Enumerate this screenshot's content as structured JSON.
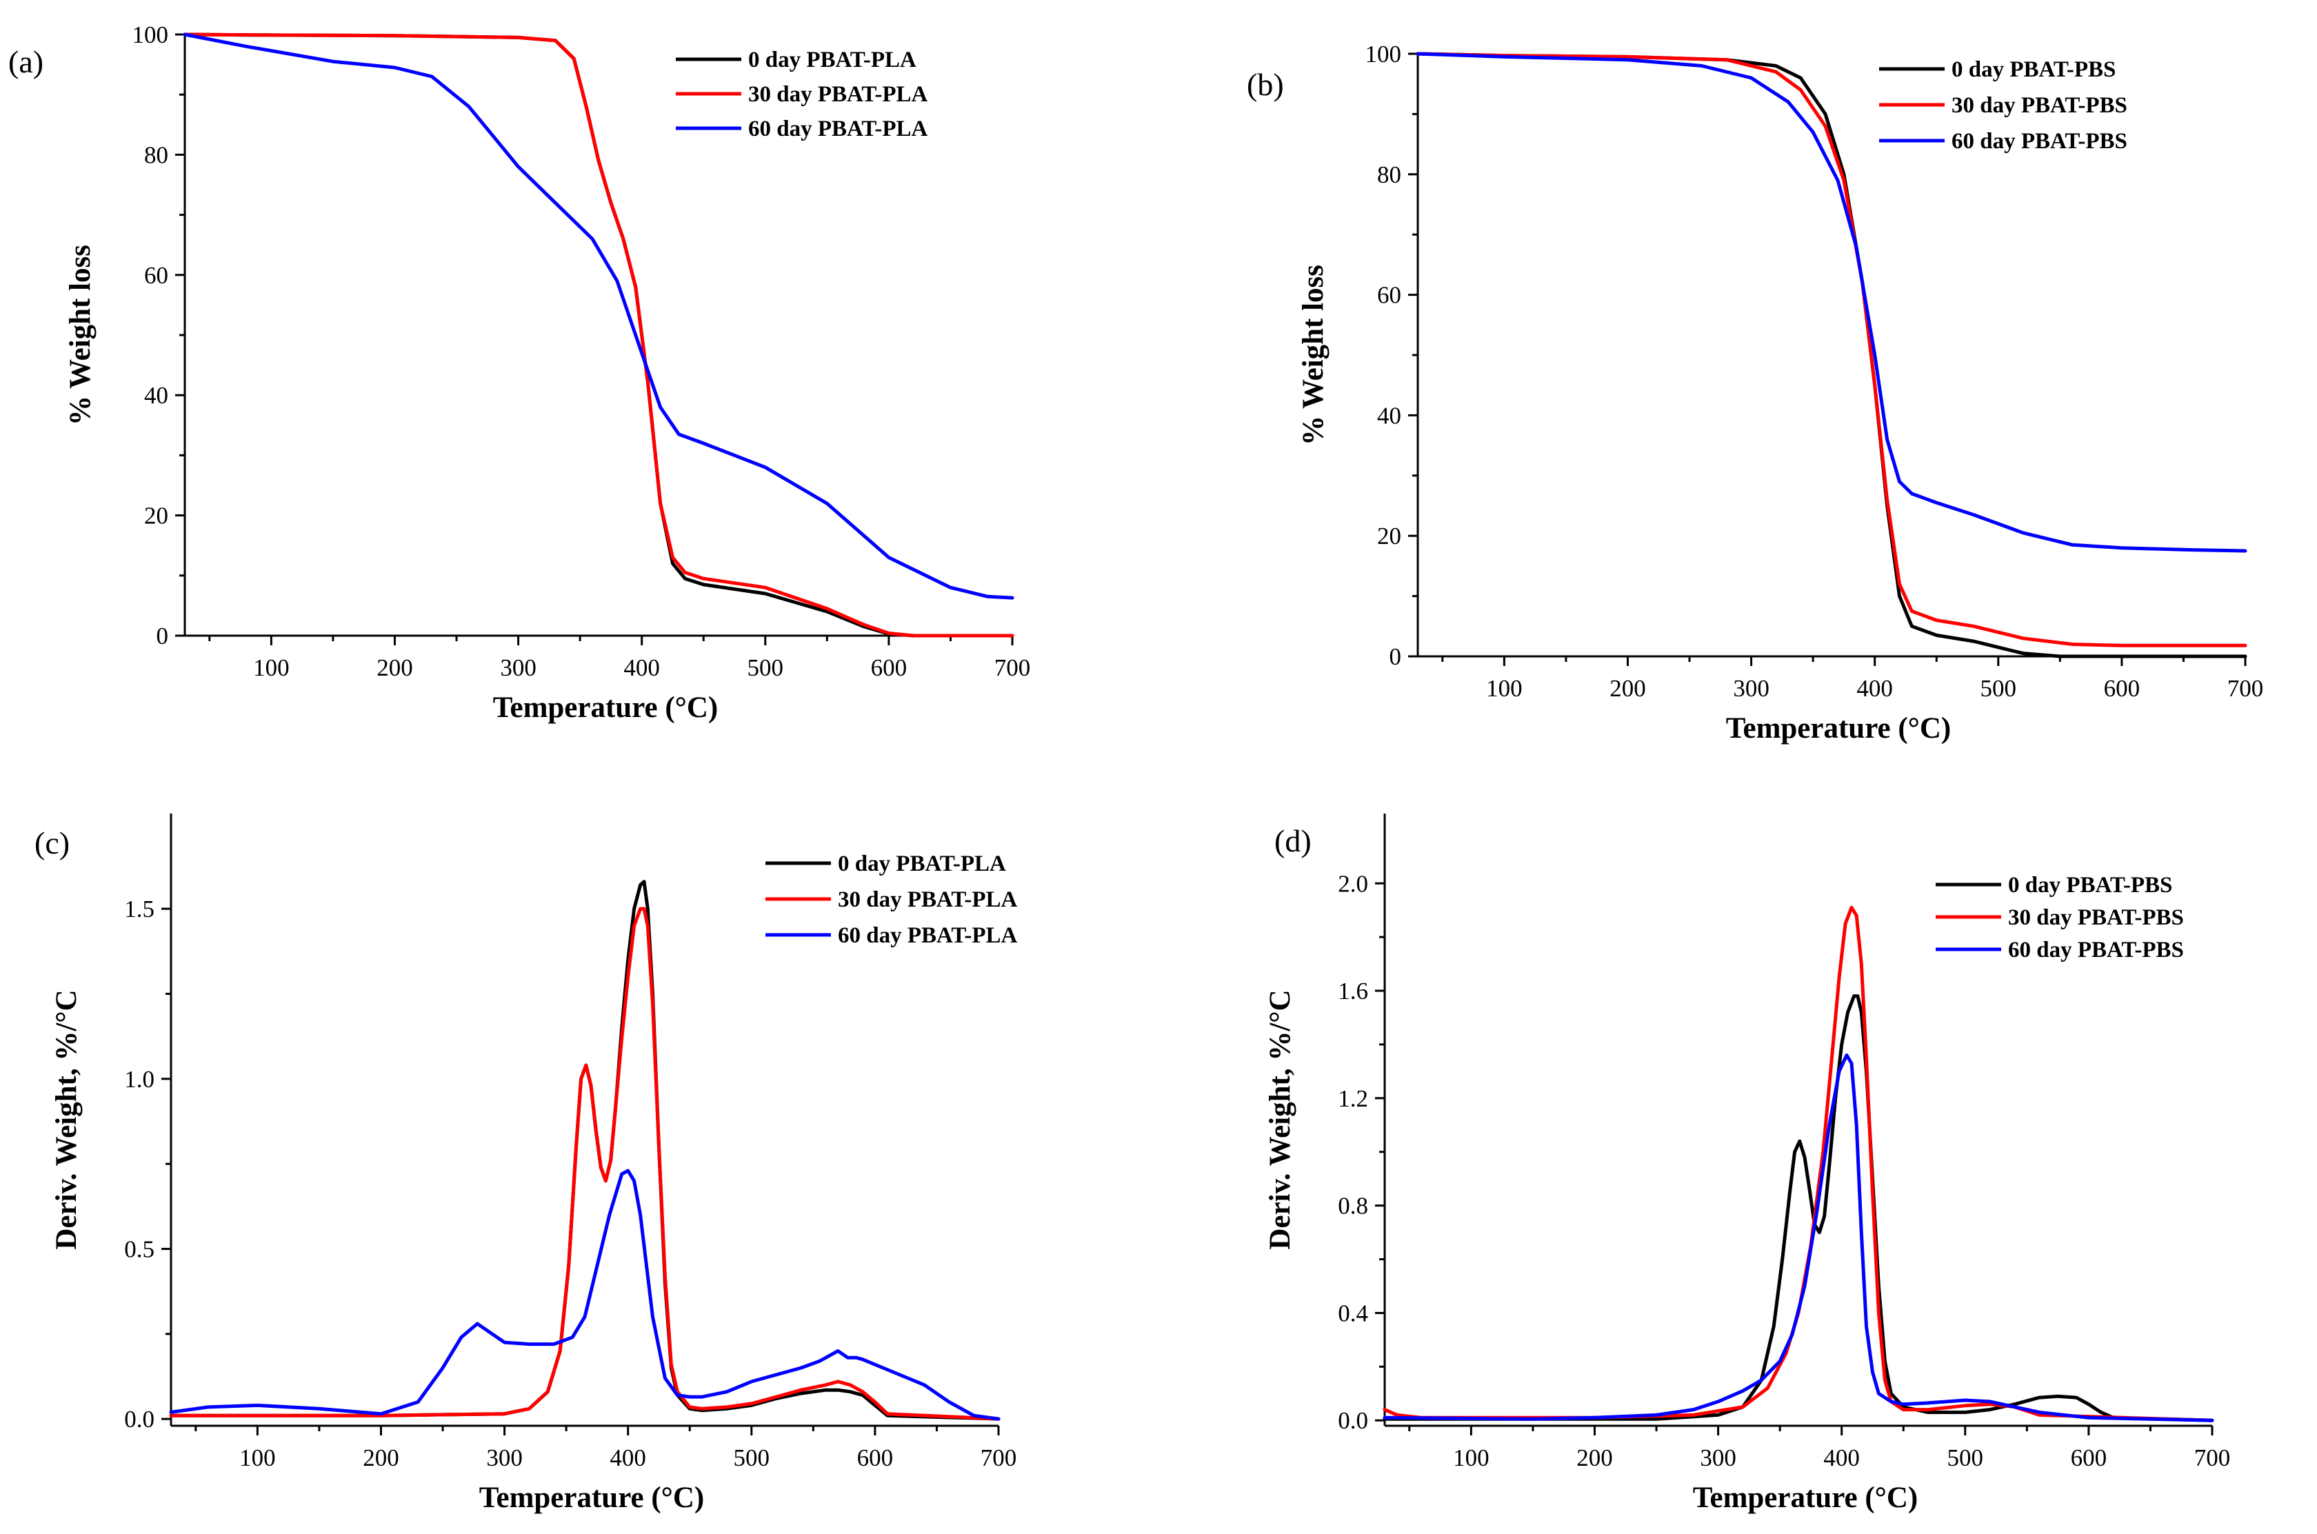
{
  "chart_data": [
    {
      "panel": "(a)",
      "type": "line",
      "xlabel": "Temperature (°C)",
      "ylabel": "% Weight loss",
      "xlim": [
        30,
        700
      ],
      "ylim": [
        0,
        100
      ],
      "xticks": [
        100,
        200,
        300,
        400,
        500,
        600,
        700
      ],
      "yticks": [
        0,
        20,
        40,
        60,
        80,
        100
      ],
      "legend_position": "top-right",
      "series": [
        {
          "name": "0 day PBAT-PLA",
          "color": "#000000",
          "x": [
            30,
            100,
            200,
            300,
            330,
            345,
            355,
            365,
            375,
            385,
            395,
            405,
            415,
            425,
            435,
            450,
            500,
            550,
            580,
            600,
            620,
            700
          ],
          "y": [
            100,
            99.9,
            99.8,
            99.5,
            99,
            96,
            88,
            79,
            72,
            66,
            58,
            42,
            22,
            12,
            9.5,
            8.5,
            7,
            4,
            1.5,
            0.3,
            0,
            0
          ]
        },
        {
          "name": "30 day PBAT-PLA",
          "color": "#ff0000",
          "x": [
            30,
            100,
            200,
            300,
            330,
            345,
            355,
            365,
            375,
            385,
            395,
            405,
            415,
            425,
            435,
            450,
            500,
            550,
            580,
            600,
            620,
            700
          ],
          "y": [
            100,
            99.9,
            99.8,
            99.5,
            99,
            96,
            88,
            79,
            72,
            66,
            58,
            42,
            22,
            13,
            10.5,
            9.5,
            8,
            4.5,
            1.8,
            0.4,
            0,
            0
          ]
        },
        {
          "name": "60 day PBAT-PLA",
          "color": "#0000ff",
          "x": [
            30,
            80,
            150,
            200,
            230,
            260,
            280,
            300,
            330,
            360,
            380,
            400,
            415,
            430,
            450,
            500,
            550,
            600,
            650,
            680,
            700
          ],
          "y": [
            100,
            98,
            95.5,
            94.5,
            93,
            88,
            83,
            78,
            72,
            66,
            59,
            47,
            38,
            33.5,
            32,
            28,
            22,
            13,
            8,
            6.5,
            6.3
          ]
        }
      ]
    },
    {
      "panel": "(b)",
      "type": "line",
      "xlabel": "Temperature (°C)",
      "ylabel": "% Weight loss",
      "xlim": [
        30,
        700
      ],
      "ylim": [
        0,
        100
      ],
      "xticks": [
        100,
        200,
        300,
        400,
        500,
        600,
        700
      ],
      "yticks": [
        0,
        20,
        40,
        60,
        80,
        100
      ],
      "legend_position": "top-right",
      "series": [
        {
          "name": "0 day PBAT-PBS",
          "color": "#000000",
          "x": [
            30,
            100,
            200,
            280,
            320,
            340,
            360,
            375,
            390,
            400,
            410,
            420,
            430,
            450,
            480,
            520,
            550,
            700
          ],
          "y": [
            100,
            99.7,
            99.5,
            99,
            98,
            96,
            90,
            80,
            62,
            45,
            25,
            10,
            5,
            3.5,
            2.5,
            0.5,
            0,
            0
          ]
        },
        {
          "name": "30 day PBAT-PBS",
          "color": "#ff0000",
          "x": [
            30,
            100,
            200,
            280,
            320,
            340,
            360,
            375,
            390,
            400,
            410,
            420,
            430,
            450,
            480,
            520,
            560,
            600,
            700
          ],
          "y": [
            100,
            99.7,
            99.5,
            99,
            97,
            94,
            88,
            79,
            62,
            45,
            26,
            12,
            7.5,
            6,
            5,
            3,
            2,
            1.8,
            1.8
          ]
        },
        {
          "name": "60 day PBAT-PBS",
          "color": "#0000ff",
          "x": [
            30,
            100,
            200,
            260,
            300,
            330,
            350,
            370,
            385,
            400,
            410,
            420,
            430,
            450,
            480,
            520,
            560,
            600,
            650,
            700
          ],
          "y": [
            100,
            99.5,
            99,
            98,
            96,
            92,
            87,
            79,
            68,
            50,
            36,
            29,
            27,
            25.5,
            23.5,
            20.5,
            18.5,
            18,
            17.7,
            17.5
          ]
        }
      ]
    },
    {
      "panel": "(c)",
      "type": "line",
      "xlabel": "Temperature (°C)",
      "ylabel": "Deriv. Weight, %/°C",
      "xlim": [
        30,
        700
      ],
      "ylim": [
        -0.02,
        1.78
      ],
      "xticks": [
        100,
        200,
        300,
        400,
        500,
        600,
        700
      ],
      "yticks": [
        0.0,
        0.5,
        1.0,
        1.5
      ],
      "yticklabels": [
        "0.0",
        "0.5",
        "1.0",
        "1.5"
      ],
      "legend_position": "top-right",
      "series": [
        {
          "name": "0 day PBAT-PLA",
          "color": "#000000",
          "x": [
            30,
            200,
            300,
            320,
            335,
            345,
            352,
            358,
            362,
            366,
            370,
            374,
            378,
            382,
            386,
            390,
            395,
            400,
            405,
            410,
            413,
            416,
            420,
            425,
            430,
            435,
            440,
            450,
            460,
            480,
            500,
            520,
            540,
            560,
            570,
            580,
            590,
            600,
            610,
            700
          ],
          "y": [
            0.01,
            0.01,
            0.015,
            0.03,
            0.08,
            0.2,
            0.45,
            0.8,
            1.0,
            1.04,
            0.98,
            0.85,
            0.74,
            0.7,
            0.76,
            0.92,
            1.15,
            1.35,
            1.5,
            1.57,
            1.58,
            1.5,
            1.25,
            0.8,
            0.4,
            0.15,
            0.07,
            0.03,
            0.025,
            0.03,
            0.04,
            0.06,
            0.075,
            0.085,
            0.085,
            0.08,
            0.07,
            0.04,
            0.01,
            0.0
          ]
        },
        {
          "name": "30 day PBAT-PLA",
          "color": "#ff0000",
          "x": [
            30,
            200,
            300,
            320,
            335,
            345,
            352,
            358,
            362,
            366,
            370,
            374,
            378,
            382,
            386,
            390,
            395,
            400,
            405,
            410,
            413,
            416,
            420,
            425,
            430,
            435,
            440,
            450,
            460,
            480,
            500,
            520,
            540,
            560,
            570,
            580,
            590,
            600,
            610,
            700
          ],
          "y": [
            0.01,
            0.01,
            0.015,
            0.03,
            0.08,
            0.2,
            0.45,
            0.8,
            1.0,
            1.04,
            0.98,
            0.85,
            0.74,
            0.7,
            0.76,
            0.92,
            1.12,
            1.3,
            1.45,
            1.5,
            1.5,
            1.45,
            1.22,
            0.8,
            0.42,
            0.16,
            0.08,
            0.035,
            0.03,
            0.035,
            0.045,
            0.065,
            0.085,
            0.1,
            0.11,
            0.1,
            0.08,
            0.05,
            0.015,
            0.0
          ]
        },
        {
          "name": "60 day PBAT-PLA",
          "color": "#0000ff",
          "x": [
            30,
            60,
            100,
            150,
            200,
            230,
            250,
            265,
            278,
            290,
            300,
            320,
            340,
            355,
            365,
            375,
            385,
            395,
            400,
            405,
            410,
            420,
            430,
            440,
            450,
            460,
            480,
            500,
            520,
            540,
            555,
            565,
            570,
            578,
            585,
            590,
            600,
            620,
            640,
            660,
            680,
            700
          ],
          "y": [
            0.02,
            0.035,
            0.04,
            0.03,
            0.015,
            0.05,
            0.15,
            0.24,
            0.28,
            0.25,
            0.225,
            0.22,
            0.22,
            0.24,
            0.3,
            0.45,
            0.6,
            0.72,
            0.73,
            0.7,
            0.6,
            0.3,
            0.12,
            0.07,
            0.065,
            0.065,
            0.08,
            0.11,
            0.13,
            0.15,
            0.17,
            0.19,
            0.2,
            0.18,
            0.18,
            0.175,
            0.16,
            0.13,
            0.1,
            0.05,
            0.01,
            0.0
          ]
        }
      ]
    },
    {
      "panel": "(d)",
      "type": "line",
      "xlabel": "Temperature (°C)",
      "ylabel": "Deriv. Weight, %/°C",
      "xlim": [
        30,
        700
      ],
      "ylim": [
        -0.02,
        2.26
      ],
      "xticks": [
        100,
        200,
        300,
        400,
        500,
        600,
        700
      ],
      "yticks": [
        0.0,
        0.4,
        0.8,
        1.2,
        1.6,
        2.0
      ],
      "yticklabels": [
        "0.0",
        "0.4",
        "0.8",
        "1.2",
        "1.6",
        "2.0"
      ],
      "legend_position": "top-right",
      "series": [
        {
          "name": "0  day PBAT-PBS",
          "color": "#000000",
          "x": [
            30,
            250,
            300,
            320,
            335,
            345,
            352,
            358,
            362,
            366,
            370,
            374,
            378,
            382,
            386,
            390,
            395,
            400,
            405,
            410,
            413,
            416,
            420,
            425,
            430,
            435,
            440,
            450,
            470,
            500,
            520,
            540,
            560,
            575,
            590,
            600,
            610,
            620,
            700
          ],
          "y": [
            0.005,
            0.005,
            0.02,
            0.05,
            0.15,
            0.35,
            0.6,
            0.85,
            1.0,
            1.04,
            0.98,
            0.86,
            0.73,
            0.7,
            0.76,
            0.95,
            1.2,
            1.4,
            1.52,
            1.58,
            1.58,
            1.52,
            1.3,
            0.9,
            0.5,
            0.22,
            0.1,
            0.05,
            0.03,
            0.03,
            0.04,
            0.06,
            0.085,
            0.09,
            0.085,
            0.06,
            0.03,
            0.01,
            0.0
          ]
        },
        {
          "name": "30 day PBAT-PBS",
          "color": "#ff0000",
          "x": [
            30,
            40,
            60,
            200,
            280,
            320,
            340,
            355,
            365,
            375,
            385,
            392,
            398,
            403,
            408,
            412,
            416,
            420,
            425,
            430,
            435,
            440,
            450,
            470,
            500,
            520,
            540,
            560,
            700
          ],
          "y": [
            0.04,
            0.02,
            0.01,
            0.01,
            0.02,
            0.05,
            0.12,
            0.25,
            0.4,
            0.65,
            1.0,
            1.35,
            1.65,
            1.85,
            1.91,
            1.88,
            1.7,
            1.35,
            0.85,
            0.4,
            0.15,
            0.07,
            0.04,
            0.04,
            0.055,
            0.06,
            0.05,
            0.02,
            0.0
          ]
        },
        {
          "name": "60 day PBAT-PBS",
          "color": "#0000ff",
          "x": [
            30,
            150,
            200,
            250,
            280,
            300,
            320,
            335,
            350,
            360,
            370,
            380,
            390,
            398,
            404,
            408,
            412,
            416,
            420,
            425,
            430,
            440,
            450,
            470,
            500,
            520,
            540,
            560,
            600,
            700
          ],
          "y": [
            0.01,
            0.005,
            0.01,
            0.02,
            0.04,
            0.07,
            0.11,
            0.15,
            0.22,
            0.32,
            0.5,
            0.78,
            1.1,
            1.3,
            1.36,
            1.33,
            1.1,
            0.7,
            0.35,
            0.18,
            0.1,
            0.07,
            0.06,
            0.065,
            0.075,
            0.07,
            0.05,
            0.03,
            0.01,
            0.0
          ]
        }
      ]
    }
  ]
}
